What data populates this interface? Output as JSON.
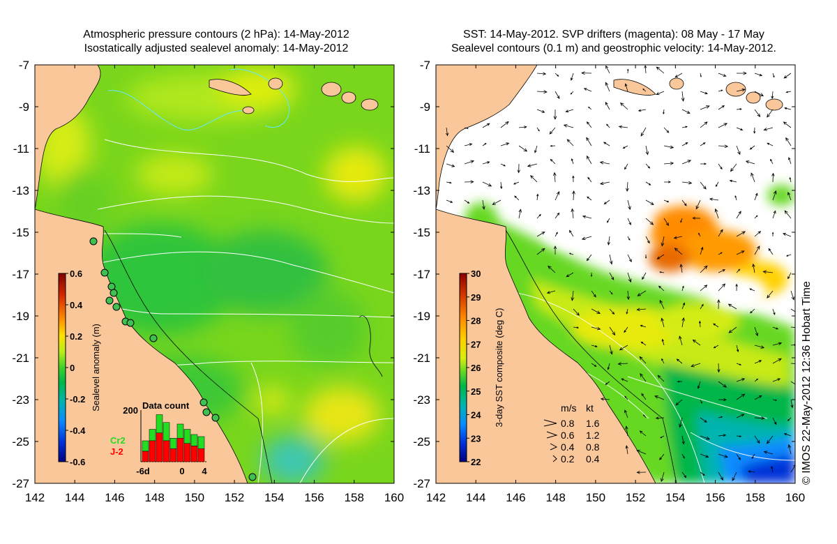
{
  "left_panel": {
    "title_line1": "Atmospheric pressure contours (2 hPa): 14-May-2012",
    "title_line2": "Isostatically adjusted sealevel anomaly: 14-May-2012",
    "y_ticks": [
      "-7",
      "-9",
      "-11",
      "-13",
      "-15",
      "-17",
      "-19",
      "-21",
      "-23",
      "-25",
      "-27"
    ],
    "x_ticks": [
      "142",
      "144",
      "146",
      "148",
      "150",
      "152",
      "154",
      "156",
      "158",
      "160"
    ],
    "colorbar": {
      "label": "Sealevel anomaly (m)",
      "ticks": [
        "0.6",
        "0.4",
        "0.2",
        "0",
        "-0.2",
        "-0.4",
        "-0.6"
      ],
      "colors": [
        "#7f0000",
        "#d62a00",
        "#ff8c00",
        "#ffe000",
        "#b5ec1a",
        "#3fd22a",
        "#00b64a",
        "#00b4b0",
        "#0a8cff",
        "#0030d8",
        "#000080"
      ]
    },
    "data_count": {
      "title": "Data count",
      "y_tick": "200",
      "x_ticks": [
        "-6d",
        "0",
        "4"
      ],
      "legend_cr2": "Cr2",
      "legend_j2": "J-2",
      "cr2_color": "#22dd22",
      "j2_color": "#ff0000"
    }
  },
  "right_panel": {
    "title_line1": "SST: 14-May-2012. SVP drifters (magenta): 08 May - 17 May",
    "title_line2": "Sealevel contours (0.1 m) and geostrophic velocity: 14-May-2012.",
    "y_ticks": [
      "-7",
      "-9",
      "-11",
      "-13",
      "-15",
      "-17",
      "-19",
      "-21",
      "-23",
      "-25",
      "-27"
    ],
    "x_ticks": [
      "142",
      "144",
      "146",
      "148",
      "150",
      "152",
      "154",
      "156",
      "158",
      "160"
    ],
    "colorbar": {
      "label": "3-day SST composite (deg C)",
      "ticks": [
        "30",
        "29",
        "28",
        "27",
        "26",
        "25",
        "24",
        "23",
        "22"
      ],
      "colors": [
        "#8b0000",
        "#d63a00",
        "#ff8c00",
        "#ffd000",
        "#d8ee10",
        "#66d822",
        "#00b64a",
        "#00b4b0",
        "#0a8cff",
        "#0030d8",
        "#000080"
      ]
    },
    "velocity_legend": {
      "header_ms": "m/s",
      "header_kt": "kt",
      "rows": [
        {
          "ms": "0.8",
          "kt": "1.6"
        },
        {
          "ms": "0.6",
          "kt": "1.2"
        },
        {
          "ms": "0.4",
          "kt": "0.8"
        },
        {
          "ms": "0.2",
          "kt": "0.4"
        }
      ]
    }
  },
  "copyright": "© IMOS 22-May-2012 12:36 Hobart Time",
  "colors": {
    "land": "#f9c79a",
    "coast": "#000000",
    "contour": "#ffffff",
    "sst_cloud": "#ffffff"
  }
}
